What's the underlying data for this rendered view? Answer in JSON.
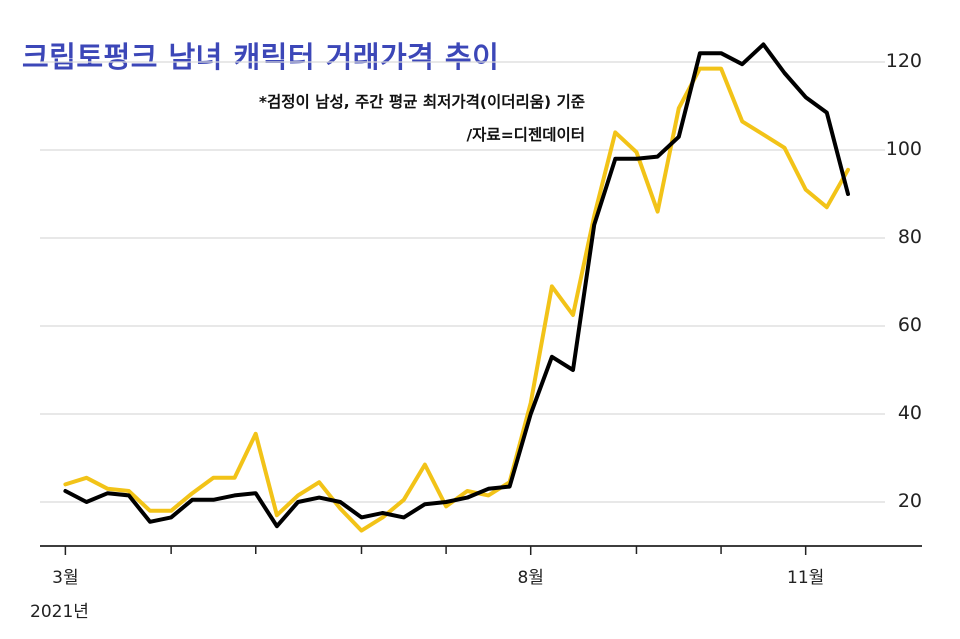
{
  "header": {
    "title": "크립토펑크 남녀 캐릭터 거래가격 추이",
    "subtitle": "*검정이 남성, 주간 평균 최저가격(이더리움) 기준",
    "source": "/자료=디젠데이터"
  },
  "colors": {
    "title": "#3c47b8",
    "male_line": "#000000",
    "female_line": "#f2c318",
    "grid": "#d9d9d9",
    "axis": "#222222"
  },
  "chart_data": {
    "type": "line",
    "title": "크립토펑크 남녀 캐릭터 거래가격 추이",
    "xlabel": "",
    "ylabel": "",
    "year_label": "2021년",
    "x_ticks": [
      {
        "label": "3월",
        "week": 0
      },
      {
        "label": "8월",
        "week": 22
      },
      {
        "label": "11월",
        "week": 35
      }
    ],
    "x_minor_ticks": [
      5,
      9,
      14,
      18,
      27,
      31
    ],
    "x_range": [
      -1.2,
      40.5
    ],
    "ylim": [
      10,
      130
    ],
    "y_ticks": [
      20,
      40,
      60,
      80,
      100,
      120
    ],
    "grid": true,
    "y_axis_side": "right",
    "series": [
      {
        "key": "male",
        "color": "#000000",
        "values": [
          22.5,
          20,
          22,
          21.5,
          15.5,
          16.5,
          20.5,
          20.5,
          21.5,
          22,
          14.5,
          20,
          21,
          20,
          16.5,
          17.5,
          16.5,
          19.5,
          20,
          21,
          23,
          23.5,
          40,
          53,
          50,
          83,
          98,
          98,
          98.5,
          103,
          122,
          122,
          119.5,
          124,
          117.5,
          112,
          108.5,
          90
        ]
      },
      {
        "key": "female",
        "color": "#f2c318",
        "values": [
          24,
          25.5,
          23,
          22.5,
          18,
          18,
          22,
          25.5,
          25.5,
          35.5,
          17,
          21.5,
          24.5,
          18.5,
          13.5,
          16.5,
          20.5,
          28.5,
          19,
          22.5,
          21.5,
          24.5,
          42.5,
          69,
          62.5,
          85,
          104,
          99.5,
          86,
          109.5,
          118.5,
          118.5,
          106.5,
          103.5,
          100.5,
          91,
          87,
          95.5
        ]
      }
    ]
  }
}
